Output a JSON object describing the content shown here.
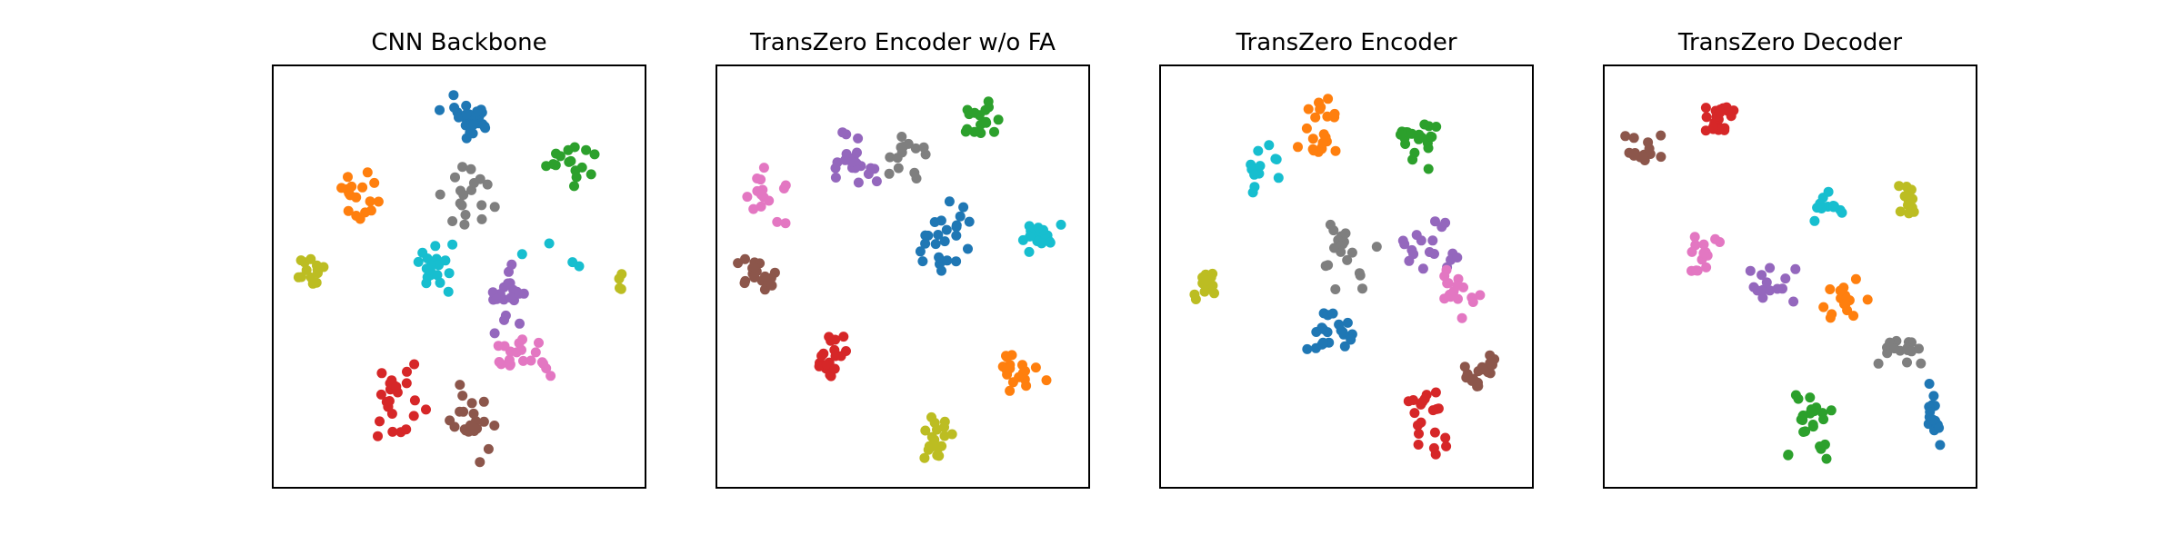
{
  "palette": {
    "blue": "#1f77b4",
    "orange": "#ff7f0e",
    "green": "#2ca02c",
    "red": "#d62728",
    "purple": "#9467bd",
    "brown": "#8c564b",
    "pink": "#e377c2",
    "gray": "#7f7f7f",
    "olive": "#bcbd22",
    "cyan": "#17becf"
  },
  "chart_data": [
    {
      "type": "scatter",
      "title": "CNN Backbone",
      "xlim": [
        0,
        100
      ],
      "ylim": [
        0,
        100
      ],
      "axes_ticks": false,
      "clusters": [
        {
          "color": "blue",
          "center": [
            53,
            87
          ],
          "spread": [
            6,
            5
          ],
          "n": 28
        },
        {
          "color": "green",
          "center": [
            78,
            77
          ],
          "spread": [
            7,
            5
          ],
          "n": 16
        },
        {
          "color": "orange",
          "center": [
            24,
            69
          ],
          "spread": [
            6,
            5
          ],
          "n": 17
        },
        {
          "color": "gray",
          "center": [
            52,
            68
          ],
          "spread": [
            7,
            8
          ],
          "n": 18
        },
        {
          "color": "cyan",
          "center": [
            43,
            53
          ],
          "spread": [
            6,
            5
          ],
          "n": 18
        },
        {
          "color": "olive",
          "center": [
            11,
            52
          ],
          "spread": [
            3,
            4
          ],
          "n": 14
        },
        {
          "color": "olive",
          "center": [
            93,
            48
          ],
          "spread": [
            1.5,
            2
          ],
          "n": 4
        },
        {
          "color": "purple",
          "center": [
            63,
            45
          ],
          "spread": [
            6,
            7
          ],
          "n": 22
        },
        {
          "color": "pink",
          "center": [
            68,
            31
          ],
          "spread": [
            8,
            4
          ],
          "n": 20
        },
        {
          "color": "red",
          "center": [
            34,
            19
          ],
          "spread": [
            7,
            8
          ],
          "n": 24
        },
        {
          "color": "brown",
          "center": [
            54,
            15
          ],
          "spread": [
            5,
            7
          ],
          "n": 22
        },
        {
          "color": "cyan",
          "center": [
            75,
            56
          ],
          "spread": [
            12,
            6
          ],
          "n": 4
        }
      ]
    },
    {
      "type": "scatter",
      "title": "TransZero Encoder w/o FA",
      "xlim": [
        0,
        100
      ],
      "ylim": [
        0,
        100
      ],
      "axes_ticks": false,
      "clusters": [
        {
          "color": "green",
          "center": [
            71,
            88
          ],
          "spread": [
            5,
            5
          ],
          "n": 16
        },
        {
          "color": "purple",
          "center": [
            36,
            77
          ],
          "spread": [
            8,
            6
          ],
          "n": 20
        },
        {
          "color": "gray",
          "center": [
            52,
            78
          ],
          "spread": [
            7,
            6
          ],
          "n": 14
        },
        {
          "color": "pink",
          "center": [
            13,
            69
          ],
          "spread": [
            5,
            6
          ],
          "n": 16
        },
        {
          "color": "blue",
          "center": [
            60,
            59
          ],
          "spread": [
            8,
            8
          ],
          "n": 24
        },
        {
          "color": "cyan",
          "center": [
            86,
            59
          ],
          "spread": [
            5,
            4
          ],
          "n": 18
        },
        {
          "color": "brown",
          "center": [
            10,
            50
          ],
          "spread": [
            6,
            4
          ],
          "n": 18
        },
        {
          "color": "red",
          "center": [
            30,
            30
          ],
          "spread": [
            5,
            7
          ],
          "n": 18
        },
        {
          "color": "orange",
          "center": [
            82,
            27
          ],
          "spread": [
            5,
            6
          ],
          "n": 18
        },
        {
          "color": "olive",
          "center": [
            59,
            12
          ],
          "spread": [
            5,
            5
          ],
          "n": 18
        }
      ]
    },
    {
      "type": "scatter",
      "title": "TransZero Encoder",
      "xlim": [
        0,
        100
      ],
      "ylim": [
        0,
        100
      ],
      "axes_ticks": false,
      "clusters": [
        {
          "color": "orange",
          "center": [
            43,
            85
          ],
          "spread": [
            5,
            7
          ],
          "n": 22
        },
        {
          "color": "green",
          "center": [
            69,
            82
          ],
          "spread": [
            7,
            6
          ],
          "n": 20
        },
        {
          "color": "cyan",
          "center": [
            27,
            76
          ],
          "spread": [
            4,
            5
          ],
          "n": 12
        },
        {
          "color": "olive",
          "center": [
            12,
            48
          ],
          "spread": [
            4,
            4
          ],
          "n": 16
        },
        {
          "color": "gray",
          "center": [
            50,
            55
          ],
          "spread": [
            7,
            9
          ],
          "n": 18
        },
        {
          "color": "purple",
          "center": [
            73,
            58
          ],
          "spread": [
            6,
            7
          ],
          "n": 18
        },
        {
          "color": "blue",
          "center": [
            46,
            37
          ],
          "spread": [
            5,
            6
          ],
          "n": 22
        },
        {
          "color": "pink",
          "center": [
            80,
            46
          ],
          "spread": [
            5,
            6
          ],
          "n": 16
        },
        {
          "color": "brown",
          "center": [
            87,
            28
          ],
          "spread": [
            5,
            6
          ],
          "n": 18
        },
        {
          "color": "red",
          "center": [
            72,
            16
          ],
          "spread": [
            6,
            10
          ],
          "n": 20
        }
      ]
    },
    {
      "type": "scatter",
      "title": "TransZero Decoder",
      "xlim": [
        0,
        100
      ],
      "ylim": [
        0,
        100
      ],
      "axes_ticks": false,
      "clusters": [
        {
          "color": "red",
          "center": [
            31,
            87
          ],
          "spread": [
            5,
            4
          ],
          "n": 20
        },
        {
          "color": "brown",
          "center": [
            11,
            80
          ],
          "spread": [
            5,
            4
          ],
          "n": 16
        },
        {
          "color": "cyan",
          "center": [
            60,
            65
          ],
          "spread": [
            4,
            5
          ],
          "n": 12
        },
        {
          "color": "olive",
          "center": [
            82,
            68
          ],
          "spread": [
            4,
            4
          ],
          "n": 14
        },
        {
          "color": "pink",
          "center": [
            27,
            55
          ],
          "spread": [
            5,
            5
          ],
          "n": 14
        },
        {
          "color": "purple",
          "center": [
            44,
            49
          ],
          "spread": [
            7,
            7
          ],
          "n": 14
        },
        {
          "color": "orange",
          "center": [
            64,
            45
          ],
          "spread": [
            5,
            5
          ],
          "n": 18
        },
        {
          "color": "gray",
          "center": [
            81,
            33
          ],
          "spread": [
            8,
            4
          ],
          "n": 16
        },
        {
          "color": "green",
          "center": [
            55,
            16
          ],
          "spread": [
            6,
            8
          ],
          "n": 24
        },
        {
          "color": "blue",
          "center": [
            87,
            17
          ],
          "spread": [
            5,
            5
          ],
          "n": 16
        }
      ]
    }
  ]
}
